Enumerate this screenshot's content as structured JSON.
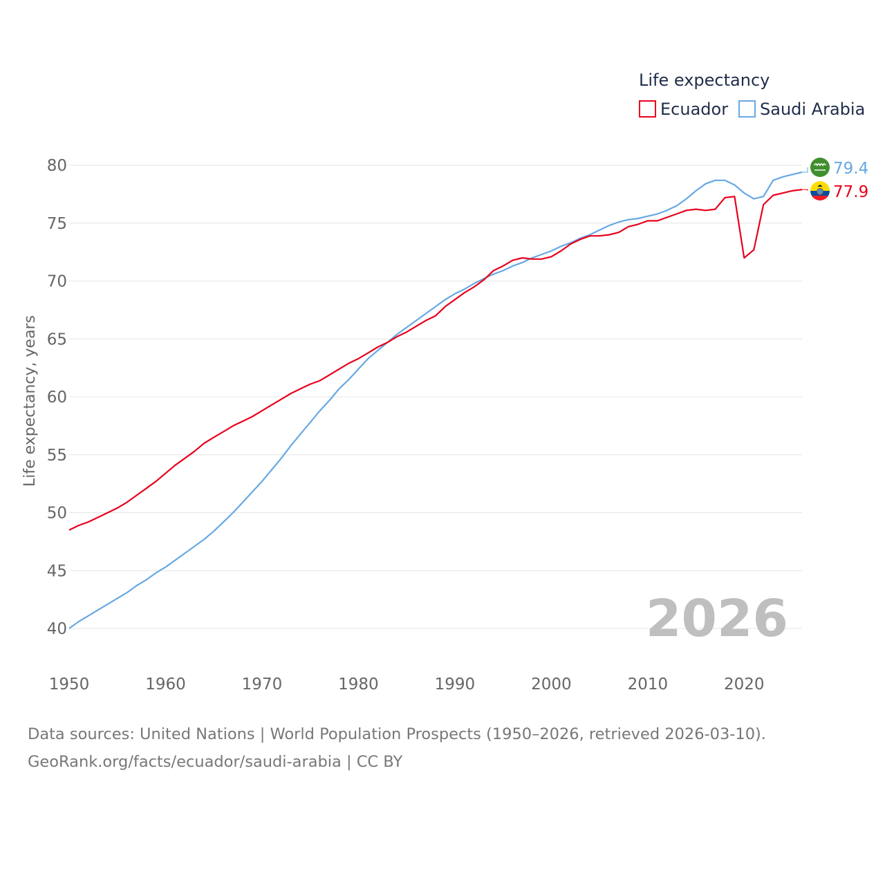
{
  "chart_data": {
    "type": "line",
    "legend_title": "Life expectancy",
    "ylabel": "Life expectancy, years",
    "ylim": [
      40,
      80
    ],
    "xlim": [
      1950,
      2026
    ],
    "yticks": [
      80,
      75,
      70,
      65,
      60,
      55,
      50,
      45,
      40
    ],
    "xticks": [
      1950,
      1960,
      1970,
      1980,
      1990,
      2000,
      2010,
      2020
    ],
    "year_watermark": "2026",
    "series": [
      {
        "name": "Ecuador",
        "color": "#e8001c",
        "end_label": "77.9",
        "flag_icon": "ecuador-flag-icon",
        "points": [
          [
            1950,
            48.5
          ],
          [
            1951,
            48.9
          ],
          [
            1952,
            49.2
          ],
          [
            1953,
            49.6
          ],
          [
            1954,
            50.0
          ],
          [
            1955,
            50.4
          ],
          [
            1956,
            50.9
          ],
          [
            1957,
            51.5
          ],
          [
            1958,
            52.1
          ],
          [
            1959,
            52.7
          ],
          [
            1960,
            53.4
          ],
          [
            1961,
            54.1
          ],
          [
            1962,
            54.7
          ],
          [
            1963,
            55.3
          ],
          [
            1964,
            56.0
          ],
          [
            1965,
            56.5
          ],
          [
            1966,
            57.0
          ],
          [
            1967,
            57.5
          ],
          [
            1968,
            57.9
          ],
          [
            1969,
            58.3
          ],
          [
            1970,
            58.8
          ],
          [
            1971,
            59.3
          ],
          [
            1972,
            59.8
          ],
          [
            1973,
            60.3
          ],
          [
            1974,
            60.7
          ],
          [
            1975,
            61.1
          ],
          [
            1976,
            61.4
          ],
          [
            1977,
            61.9
          ],
          [
            1978,
            62.4
          ],
          [
            1979,
            62.9
          ],
          [
            1980,
            63.3
          ],
          [
            1981,
            63.8
          ],
          [
            1982,
            64.3
          ],
          [
            1983,
            64.7
          ],
          [
            1984,
            65.2
          ],
          [
            1985,
            65.6
          ],
          [
            1986,
            66.1
          ],
          [
            1987,
            66.6
          ],
          [
            1988,
            67.0
          ],
          [
            1989,
            67.8
          ],
          [
            1990,
            68.4
          ],
          [
            1991,
            69.0
          ],
          [
            1992,
            69.5
          ],
          [
            1993,
            70.1
          ],
          [
            1994,
            70.9
          ],
          [
            1995,
            71.3
          ],
          [
            1996,
            71.8
          ],
          [
            1997,
            72.0
          ],
          [
            1998,
            71.9
          ],
          [
            1999,
            71.9
          ],
          [
            2000,
            72.1
          ],
          [
            2001,
            72.6
          ],
          [
            2002,
            73.2
          ],
          [
            2003,
            73.6
          ],
          [
            2004,
            73.9
          ],
          [
            2005,
            73.9
          ],
          [
            2006,
            74.0
          ],
          [
            2007,
            74.2
          ],
          [
            2008,
            74.7
          ],
          [
            2009,
            74.9
          ],
          [
            2010,
            75.2
          ],
          [
            2011,
            75.2
          ],
          [
            2012,
            75.5
          ],
          [
            2013,
            75.8
          ],
          [
            2014,
            76.1
          ],
          [
            2015,
            76.2
          ],
          [
            2016,
            76.1
          ],
          [
            2017,
            76.2
          ],
          [
            2018,
            77.2
          ],
          [
            2019,
            77.3
          ],
          [
            2020,
            72.0
          ],
          [
            2021,
            72.7
          ],
          [
            2022,
            76.6
          ],
          [
            2023,
            77.4
          ],
          [
            2024,
            77.6
          ],
          [
            2025,
            77.8
          ],
          [
            2026,
            77.9
          ]
        ]
      },
      {
        "name": "Saudi Arabia",
        "color": "#66a8e3",
        "end_label": "79.4",
        "flag_icon": "saudi-arabia-flag-icon",
        "points": [
          [
            1950,
            40.0
          ],
          [
            1951,
            40.6
          ],
          [
            1952,
            41.1
          ],
          [
            1953,
            41.6
          ],
          [
            1954,
            42.1
          ],
          [
            1955,
            42.6
          ],
          [
            1956,
            43.1
          ],
          [
            1957,
            43.7
          ],
          [
            1958,
            44.2
          ],
          [
            1959,
            44.8
          ],
          [
            1960,
            45.3
          ],
          [
            1961,
            45.9
          ],
          [
            1962,
            46.5
          ],
          [
            1963,
            47.1
          ],
          [
            1964,
            47.7
          ],
          [
            1965,
            48.4
          ],
          [
            1966,
            49.2
          ],
          [
            1967,
            50.0
          ],
          [
            1968,
            50.9
          ],
          [
            1969,
            51.8
          ],
          [
            1970,
            52.7
          ],
          [
            1971,
            53.7
          ],
          [
            1972,
            54.7
          ],
          [
            1973,
            55.8
          ],
          [
            1974,
            56.8
          ],
          [
            1975,
            57.8
          ],
          [
            1976,
            58.8
          ],
          [
            1977,
            59.7
          ],
          [
            1978,
            60.7
          ],
          [
            1979,
            61.5
          ],
          [
            1980,
            62.4
          ],
          [
            1981,
            63.3
          ],
          [
            1982,
            64.0
          ],
          [
            1983,
            64.7
          ],
          [
            1984,
            65.4
          ],
          [
            1985,
            66.0
          ],
          [
            1986,
            66.6
          ],
          [
            1987,
            67.2
          ],
          [
            1988,
            67.8
          ],
          [
            1989,
            68.4
          ],
          [
            1990,
            68.9
          ],
          [
            1991,
            69.3
          ],
          [
            1992,
            69.8
          ],
          [
            1993,
            70.2
          ],
          [
            1994,
            70.6
          ],
          [
            1995,
            70.9
          ],
          [
            1996,
            71.3
          ],
          [
            1997,
            71.6
          ],
          [
            1998,
            72.0
          ],
          [
            1999,
            72.3
          ],
          [
            2000,
            72.6
          ],
          [
            2001,
            73.0
          ],
          [
            2002,
            73.3
          ],
          [
            2003,
            73.7
          ],
          [
            2004,
            74.0
          ],
          [
            2005,
            74.4
          ],
          [
            2006,
            74.8
          ],
          [
            2007,
            75.1
          ],
          [
            2008,
            75.3
          ],
          [
            2009,
            75.4
          ],
          [
            2010,
            75.6
          ],
          [
            2011,
            75.8
          ],
          [
            2012,
            76.1
          ],
          [
            2013,
            76.5
          ],
          [
            2014,
            77.1
          ],
          [
            2015,
            77.8
          ],
          [
            2016,
            78.4
          ],
          [
            2017,
            78.7
          ],
          [
            2018,
            78.7
          ],
          [
            2019,
            78.3
          ],
          [
            2020,
            77.6
          ],
          [
            2021,
            77.1
          ],
          [
            2022,
            77.3
          ],
          [
            2023,
            78.7
          ],
          [
            2024,
            79.0
          ],
          [
            2025,
            79.2
          ],
          [
            2026,
            79.4
          ]
        ]
      }
    ]
  },
  "source": {
    "line1": "Data sources: United Nations | World Population Prospects (1950–2026, retrieved 2026-03-10).",
    "line2": "GeoRank.org/facts/ecuador/saudi-arabia | CC BY"
  }
}
